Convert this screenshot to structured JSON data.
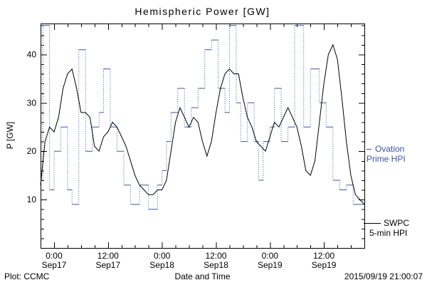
{
  "footer": {
    "plot_credit": "Plot: CCMC",
    "timestamp": "2015/09/19 21:00:07"
  },
  "legend": {
    "ovation": {
      "line1": "Ovation",
      "line2": "Prime HPI"
    },
    "swpc": {
      "line1": "SWPC",
      "line2": "5-min HPI"
    }
  },
  "colors": {
    "ovation": "#3b55a8",
    "swpc": "#000000",
    "background": "#ffffff"
  },
  "chart_data": {
    "type": "line",
    "title": "Hemispheric Power [GW]",
    "xlabel": "Date and Time",
    "ylabel": "P [GW]",
    "ylim": [
      0,
      46.4
    ],
    "xlim_hours": [
      -3,
      69
    ],
    "grid": false,
    "legend_position": "right-outside",
    "y_ticks": [
      10,
      20,
      30,
      40
    ],
    "y_minor_step": 2,
    "x_minor_step": 3,
    "x_ticks": [
      {
        "hour": 0,
        "time": "0:00",
        "date": "Sep17"
      },
      {
        "hour": 12,
        "time": "12:00",
        "date": "Sep17"
      },
      {
        "hour": 24,
        "time": "0:00",
        "date": "Sep18"
      },
      {
        "hour": 36,
        "time": "12:00",
        "date": "Sep18"
      },
      {
        "hour": 48,
        "time": "0:00",
        "date": "Sep19"
      },
      {
        "hour": 60,
        "time": "12:00",
        "date": "Sep19"
      }
    ],
    "series": [
      {
        "id": "ovation",
        "name": "Ovation Prime HPI",
        "style": "step-dotted",
        "color": "#3b55a8",
        "x": [
          -3,
          -2.5,
          -1,
          0,
          1.5,
          3,
          4,
          5.5,
          7,
          8.5,
          10,
          11,
          12.5,
          14,
          15.5,
          17,
          19,
          21,
          23,
          24,
          25,
          26,
          27.5,
          29,
          30.5,
          32,
          33.5,
          35,
          36.5,
          38,
          39,
          40.5,
          41.5,
          43,
          44.5,
          45.5,
          46.5,
          48,
          49,
          50.5,
          52,
          53.5,
          55.5,
          57,
          59,
          60.5,
          62,
          63.5,
          65,
          66.5,
          69
        ],
        "y": [
          14,
          46,
          12,
          20,
          25,
          12,
          9,
          41,
          20,
          25,
          28,
          37,
          25,
          20,
          13,
          9,
          13,
          8,
          13,
          16,
          22,
          28,
          33,
          25,
          29,
          33,
          41,
          43,
          33,
          28,
          46,
          30,
          22,
          30,
          22,
          14,
          22,
          25,
          33,
          22,
          25,
          46,
          25,
          37,
          30,
          25,
          14,
          12,
          13,
          9,
          9
        ]
      },
      {
        "id": "swpc",
        "name": "SWPC 5-min HPI",
        "style": "line",
        "color": "#000000",
        "x": [
          -3,
          -2,
          -1,
          0,
          1,
          2,
          3,
          4,
          5,
          6,
          7,
          8,
          9,
          10,
          11,
          12,
          13,
          14,
          15,
          16,
          17,
          18,
          19,
          20,
          21,
          22,
          23,
          24,
          25,
          26,
          27,
          28,
          29,
          30,
          31,
          32,
          33,
          34,
          35,
          36,
          37,
          38,
          39,
          40,
          41,
          42,
          43,
          44,
          45,
          46,
          47,
          48,
          49,
          50,
          51,
          52,
          53,
          54,
          55,
          56,
          57,
          58,
          59,
          60,
          61,
          62,
          63,
          64,
          65,
          66,
          67,
          68,
          69
        ],
        "y": [
          13,
          22,
          25,
          24,
          27,
          33,
          36,
          37,
          33,
          28,
          28,
          27,
          21,
          20,
          23,
          24,
          26,
          25,
          23,
          21,
          18,
          15,
          13,
          12,
          11,
          11,
          12,
          12,
          14,
          20,
          26,
          29,
          27,
          25,
          27,
          26,
          22,
          19,
          22,
          28,
          33,
          36,
          37,
          36,
          36,
          31,
          27,
          25,
          22,
          21,
          20,
          23,
          26,
          25,
          27,
          29,
          27,
          25,
          21,
          16,
          15,
          18,
          26,
          34,
          40,
          42,
          39,
          31,
          22,
          15,
          11,
          10,
          9
        ]
      }
    ]
  }
}
